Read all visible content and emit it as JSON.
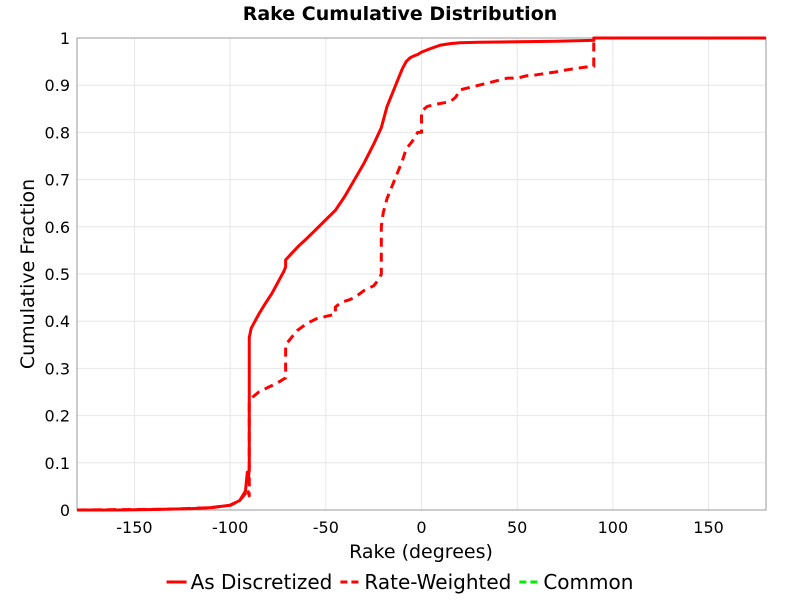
{
  "chart_data": {
    "type": "line",
    "title": "Rake Cumulative Distribution",
    "xlabel": "Rake (degrees)",
    "ylabel": "Cumulative Fraction",
    "xlim": [
      -180,
      180
    ],
    "ylim": [
      0,
      1
    ],
    "x_ticks": [
      -150,
      -100,
      -50,
      0,
      50,
      100,
      150
    ],
    "y_ticks": [
      0,
      0.1,
      0.2,
      0.3,
      0.4,
      0.5,
      0.6,
      0.7,
      0.8,
      0.9,
      1
    ],
    "grid": true,
    "legend_position": "bottom",
    "series": [
      {
        "name": "As Discretized",
        "style": "solid",
        "color": "#ff0000",
        "x": [
          -180,
          -160,
          -140,
          -120,
          -110,
          -100,
          -95,
          -92,
          -91,
          -90.5,
          -90,
          -90,
          -89,
          -87,
          -85,
          -82,
          -78,
          -74,
          -72,
          -71,
          -71,
          -68,
          -64,
          -60,
          -55,
          -50,
          -45,
          -40,
          -35,
          -30,
          -25,
          -21,
          -20,
          -18,
          -15,
          -12,
          -10,
          -8,
          -6,
          -4,
          -2,
          0,
          5,
          10,
          15,
          20,
          30,
          50,
          70,
          89,
          90,
          90,
          120,
          150,
          180
        ],
        "y": [
          0,
          0,
          0.001,
          0.003,
          0.005,
          0.01,
          0.02,
          0.04,
          0.08,
          0.06,
          0.09,
          0.365,
          0.385,
          0.4,
          0.415,
          0.435,
          0.46,
          0.49,
          0.505,
          0.515,
          0.53,
          0.543,
          0.56,
          0.575,
          0.595,
          0.615,
          0.635,
          0.665,
          0.7,
          0.735,
          0.775,
          0.81,
          0.825,
          0.855,
          0.885,
          0.915,
          0.935,
          0.95,
          0.958,
          0.962,
          0.965,
          0.97,
          0.978,
          0.985,
          0.988,
          0.99,
          0.991,
          0.992,
          0.993,
          0.995,
          0.995,
          1,
          1,
          1,
          1
        ]
      },
      {
        "name": "Rate-Weighted",
        "style": "dashed",
        "color": "#ff0000",
        "x": [
          -180,
          -150,
          -130,
          -110,
          -100,
          -95,
          -92,
          -91,
          -90,
          -90,
          -88,
          -85,
          -80,
          -75,
          -71,
          -71,
          -68,
          -65,
          -60,
          -55,
          -50,
          -45,
          -45,
          -42,
          -38,
          -35,
          -30,
          -25,
          -22,
          -21,
          -21,
          -20,
          -18,
          -15,
          -12,
          -10,
          -8,
          -5,
          -2,
          0,
          0,
          3,
          8,
          15,
          18,
          20,
          25,
          30,
          35,
          40,
          45,
          50,
          55,
          60,
          65,
          70,
          75,
          80,
          85,
          89,
          90,
          90,
          120,
          150,
          180
        ],
        "y": [
          0,
          0.001,
          0.002,
          0.005,
          0.01,
          0.02,
          0.035,
          0.045,
          0.03,
          0.23,
          0.24,
          0.25,
          0.26,
          0.27,
          0.28,
          0.35,
          0.365,
          0.38,
          0.395,
          0.405,
          0.41,
          0.415,
          0.43,
          0.44,
          0.445,
          0.45,
          0.465,
          0.475,
          0.49,
          0.5,
          0.6,
          0.63,
          0.66,
          0.69,
          0.72,
          0.74,
          0.765,
          0.78,
          0.8,
          0.8,
          0.845,
          0.855,
          0.86,
          0.865,
          0.875,
          0.89,
          0.895,
          0.9,
          0.905,
          0.91,
          0.915,
          0.915,
          0.92,
          0.922,
          0.925,
          0.928,
          0.932,
          0.935,
          0.938,
          0.94,
          0.94,
          1,
          1,
          1,
          1
        ]
      },
      {
        "name": "Common",
        "style": "dashed",
        "color": "#00ee00",
        "x": [],
        "y": []
      }
    ]
  }
}
